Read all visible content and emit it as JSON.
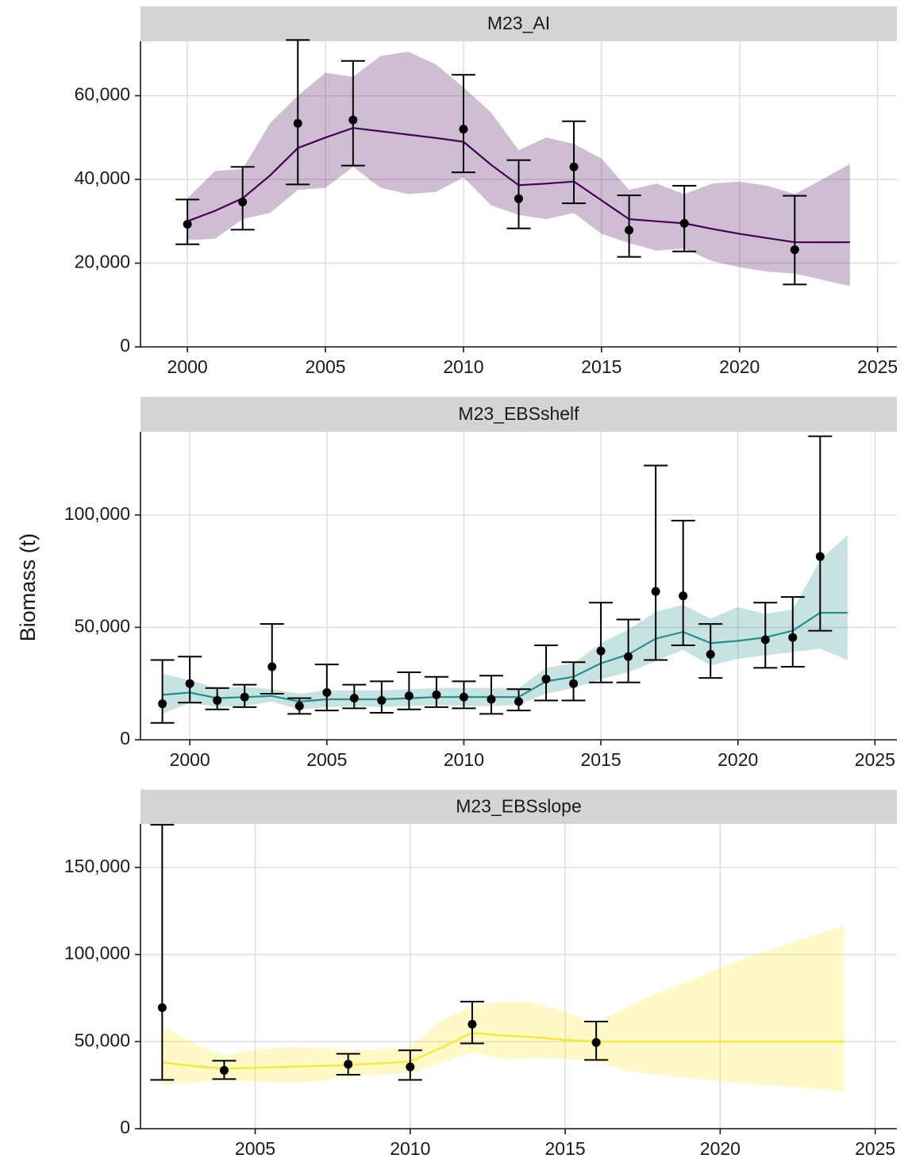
{
  "y_axis_label": "Biomass (t)",
  "chart_data": [
    {
      "type": "line",
      "title": "M23_AI",
      "color": "#440154",
      "xlim": [
        1998.3,
        2025.7
      ],
      "ylim": [
        0,
        73000
      ],
      "xticks": [
        2000,
        2005,
        2010,
        2015,
        2020,
        2025
      ],
      "yticks": [
        0,
        20000,
        40000,
        60000
      ],
      "ytick_labels": [
        "0",
        "20,000",
        "40,000",
        "60,000"
      ],
      "fit": {
        "x": [
          2000,
          2001,
          2002,
          2003,
          2004,
          2005,
          2006,
          2007,
          2008,
          2009,
          2010,
          2011,
          2012,
          2013,
          2014,
          2015,
          2016,
          2017,
          2018,
          2019,
          2020,
          2021,
          2022,
          2023,
          2024
        ],
        "y": [
          30000,
          32500,
          35500,
          41000,
          47500,
          50000,
          52300,
          51500,
          50700,
          49900,
          49000,
          43500,
          38600,
          39000,
          39500,
          35000,
          30500,
          30000,
          29500,
          28200,
          27000,
          26000,
          25000,
          25000,
          25000
        ],
        "lower": [
          25500,
          25800,
          30500,
          32000,
          37500,
          38000,
          43000,
          38000,
          36500,
          37000,
          40500,
          33800,
          31500,
          30500,
          32000,
          27000,
          24800,
          23000,
          23500,
          20500,
          19000,
          18000,
          17500,
          16000,
          14500
        ],
        "upper": [
          35500,
          42000,
          42500,
          53500,
          60000,
          65500,
          64500,
          69500,
          70500,
          67500,
          62000,
          56000,
          47000,
          50000,
          48500,
          45000,
          37500,
          39000,
          36500,
          39000,
          39500,
          38500,
          36500,
          40000,
          43700
        ]
      },
      "obs": {
        "x": [
          2000,
          2002,
          2004,
          2006,
          2010,
          2012,
          2014,
          2016,
          2018,
          2022
        ],
        "y": [
          29300,
          34600,
          53400,
          54200,
          52000,
          35400,
          43000,
          27900,
          29500,
          23200
        ],
        "lower": [
          24500,
          28000,
          38800,
          43300,
          41700,
          28300,
          34300,
          21500,
          22800,
          14900
        ],
        "upper": [
          35200,
          43000,
          73300,
          68300,
          65000,
          44600,
          53900,
          36200,
          38500,
          36100
        ]
      }
    },
    {
      "type": "line",
      "title": "M23_EBSshelf",
      "color": "#21908C",
      "xlim": [
        1998.2,
        2025.8
      ],
      "ylim": [
        0,
        137000
      ],
      "xticks": [
        2000,
        2005,
        2010,
        2015,
        2020,
        2025
      ],
      "yticks": [
        0,
        50000,
        100000
      ],
      "ytick_labels": [
        "0",
        "50,000",
        "100,000"
      ],
      "fit": {
        "x": [
          1999,
          2000,
          2001,
          2002,
          2003,
          2004,
          2005,
          2006,
          2007,
          2008,
          2009,
          2010,
          2011,
          2012,
          2013,
          2014,
          2015,
          2016,
          2017,
          2018,
          2019,
          2020,
          2021,
          2022,
          2023,
          2024
        ],
        "y": [
          20000,
          21000,
          18500,
          19000,
          19500,
          17000,
          18000,
          18000,
          18000,
          18500,
          19000,
          19000,
          19000,
          19000,
          26000,
          28000,
          34000,
          38000,
          45000,
          48000,
          43000,
          44000,
          45500,
          48500,
          56500,
          56500
        ],
        "lower": [
          11500,
          16500,
          14500,
          15000,
          17000,
          13500,
          14500,
          15000,
          14500,
          15000,
          15500,
          15000,
          15000,
          15500,
          20500,
          23000,
          27000,
          30000,
          35000,
          40000,
          33000,
          36000,
          37500,
          39000,
          40500,
          35500
        ],
        "upper": [
          29500,
          26500,
          23000,
          23500,
          22500,
          20500,
          22000,
          22000,
          22000,
          22500,
          23000,
          23000,
          23000,
          23000,
          32000,
          34000,
          43000,
          49000,
          57000,
          60000,
          54000,
          59000,
          56000,
          58000,
          80000,
          91000
        ]
      },
      "obs": {
        "x": [
          1999,
          2000,
          2001,
          2002,
          2003,
          2004,
          2005,
          2006,
          2007,
          2008,
          2009,
          2010,
          2011,
          2012,
          2013,
          2014,
          2015,
          2016,
          2017,
          2018,
          2019,
          2021,
          2022,
          2023
        ],
        "y": [
          16000,
          25000,
          17500,
          19000,
          32500,
          15000,
          21000,
          18500,
          17500,
          19500,
          20000,
          19000,
          18000,
          17000,
          27000,
          25000,
          39500,
          37000,
          66000,
          64000,
          38000,
          44500,
          45500,
          81500
        ],
        "lower": [
          7500,
          16500,
          13500,
          14500,
          20500,
          11500,
          13000,
          14000,
          12000,
          13500,
          14500,
          14000,
          11500,
          13000,
          17500,
          17500,
          25500,
          25500,
          35500,
          42000,
          27500,
          32000,
          32500,
          48500
        ],
        "upper": [
          35500,
          37000,
          23000,
          24500,
          51500,
          18500,
          33500,
          24500,
          26000,
          30000,
          28000,
          26000,
          28500,
          22500,
          42000,
          34500,
          61000,
          53500,
          122000,
          97500,
          51500,
          61000,
          63500,
          135000
        ]
      }
    },
    {
      "type": "line",
      "title": "M23_EBSslope",
      "color": "#FDE725",
      "xlim": [
        2001.3,
        2025.7
      ],
      "ylim": [
        0,
        175000
      ],
      "xticks": [
        2005,
        2010,
        2015,
        2020,
        2025
      ],
      "yticks": [
        0,
        50000,
        100000,
        150000
      ],
      "ytick_labels": [
        "0",
        "50,000",
        "100,000",
        "150,000"
      ],
      "fit": {
        "x": [
          2002,
          2003,
          2004,
          2005,
          2006,
          2007,
          2008,
          2009,
          2010,
          2011,
          2012,
          2013,
          2014,
          2015,
          2016,
          2017,
          2018,
          2019,
          2020,
          2021,
          2022,
          2023,
          2024
        ],
        "y": [
          38000,
          36000,
          34500,
          35000,
          35500,
          36000,
          36500,
          37500,
          38500,
          46500,
          55000,
          53500,
          52500,
          51000,
          50000,
          50000,
          50000,
          50000,
          50000,
          50000,
          50000,
          50000,
          50000
        ],
        "lower": [
          25000,
          26500,
          28000,
          27000,
          26500,
          27000,
          30000,
          31000,
          32000,
          38000,
          44000,
          40000,
          40500,
          40000,
          39000,
          33000,
          31000,
          29000,
          27500,
          25500,
          24500,
          23000,
          21000
        ],
        "upper": [
          59000,
          49000,
          42000,
          45500,
          47000,
          46500,
          45000,
          45500,
          47000,
          62000,
          70500,
          73000,
          72500,
          67000,
          60500,
          70000,
          78000,
          85000,
          92500,
          99000,
          105000,
          111000,
          116500
        ]
      },
      "obs": {
        "x": [
          2002,
          2004,
          2008,
          2010,
          2012,
          2016
        ],
        "y": [
          69500,
          33500,
          37000,
          35500,
          60000,
          49500
        ],
        "lower": [
          28000,
          28500,
          31000,
          28000,
          49000,
          39500
        ],
        "upper": [
          174500,
          39000,
          43000,
          45000,
          73000,
          61500
        ]
      }
    }
  ]
}
